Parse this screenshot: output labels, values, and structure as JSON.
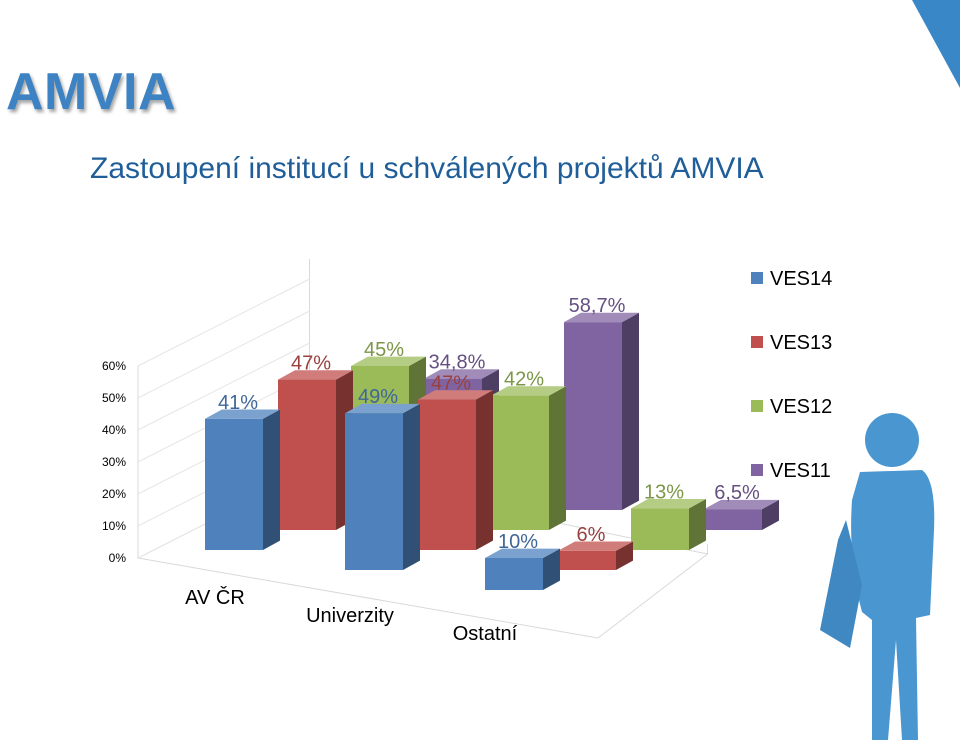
{
  "header": {
    "logo": "AMVIA",
    "subtitle": "Zastoupení institucí u schválených projektů AMVIA"
  },
  "colors": {
    "title": "#3d83c4",
    "subtitle": "#1f5e99",
    "accent": "#3a87c7"
  },
  "chart_data": {
    "type": "bar",
    "subtype": "3d-column",
    "categories": [
      "AV ČR",
      "Univerzity",
      "Ostatní"
    ],
    "y_ticks": [
      "0%",
      "10%",
      "20%",
      "30%",
      "40%",
      "50%",
      "60%"
    ],
    "ylim": [
      0,
      60
    ],
    "legend_position": "right",
    "series": [
      {
        "name": "VES14",
        "color": "#4f81bd",
        "values": [
          41,
          49,
          10
        ],
        "labels": [
          "41%",
          "49%",
          "10%"
        ]
      },
      {
        "name": "VES13",
        "color": "#c0504d",
        "values": [
          47,
          47,
          6
        ],
        "labels": [
          "47%",
          "47%",
          "6%"
        ]
      },
      {
        "name": "VES12",
        "color": "#9bbb59",
        "values": [
          45,
          42,
          13
        ],
        "labels": [
          "45%",
          "42%",
          "13%"
        ]
      },
      {
        "name": "VES11",
        "color": "#8064a2",
        "values": [
          34.8,
          58.7,
          6.5
        ],
        "labels": [
          "34,8%",
          "58,7%",
          "6,5%"
        ]
      }
    ]
  }
}
